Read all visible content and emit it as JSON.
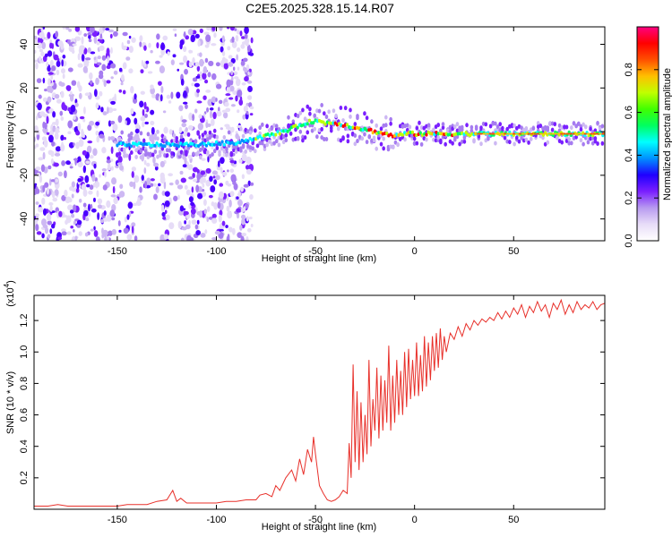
{
  "title": "C2E5.2025.328.15.14.R07",
  "chart_data": [
    {
      "type": "heatmap",
      "title": "C2E5.2025.328.15.14.R07",
      "xlabel": "Height of straight line (km)",
      "ylabel": "Frequency (Hz)",
      "xlim": [
        -192,
        96
      ],
      "ylim": [
        -50,
        48
      ],
      "xticks": [
        -150,
        -100,
        -50,
        0,
        50
      ],
      "yticks": [
        -40,
        -20,
        0,
        20,
        40
      ],
      "colorbar": {
        "label": "Normalized spectral amplitude",
        "range": [
          0.0,
          1.0
        ],
        "ticks": [
          0.0,
          0.2,
          0.4,
          0.6,
          0.8
        ],
        "colors": [
          "#ffffff",
          "#e8ddf8",
          "#b89af0",
          "#7a1fff",
          "#1f00ff",
          "#0090ff",
          "#00ffff",
          "#00ff60",
          "#40ff00",
          "#c0ff00",
          "#ffc000",
          "#ff5000",
          "#ff0000",
          "#ff0080"
        ]
      },
      "ridge": {
        "x": [
          -190,
          -170,
          -150,
          -130,
          -110,
          -90,
          -80,
          -70,
          -60,
          -55,
          -50,
          -45,
          -40,
          -35,
          -30,
          -25,
          -20,
          -15,
          -10,
          -5,
          0,
          10,
          20,
          30,
          40,
          50,
          60,
          70,
          80,
          96
        ],
        "y": [
          -6,
          -6,
          -6,
          -6,
          -6,
          -5,
          -3,
          -1,
          2,
          4,
          5,
          4,
          4,
          3,
          2,
          1,
          0,
          -1,
          -2,
          -1,
          -1,
          -1,
          -1,
          -1,
          -1,
          -1,
          -1,
          -1,
          -1,
          -1
        ]
      }
    },
    {
      "type": "line",
      "title": "",
      "xlabel": "Height of straight line (km)",
      "ylabel": "SNR (10 * v/v)",
      "yscale_label": "(x10",
      "yscale_exp": "4",
      "yscale_close": ")",
      "xlim": [
        -192,
        96
      ],
      "ylim": [
        0,
        1.36
      ],
      "xticks": [
        -150,
        -100,
        -50,
        0,
        50
      ],
      "yticks": [
        0.2,
        0.4,
        0.6,
        0.8,
        1.0,
        1.2
      ],
      "color": "#e8302a",
      "series": [
        {
          "name": "SNR",
          "x": [
            -192,
            -185,
            -180,
            -175,
            -170,
            -165,
            -160,
            -155,
            -150,
            -145,
            -140,
            -135,
            -130,
            -125,
            -122,
            -120,
            -118,
            -115,
            -110,
            -105,
            -100,
            -95,
            -90,
            -85,
            -80,
            -78,
            -75,
            -72,
            -70,
            -68,
            -65,
            -62,
            -60,
            -58,
            -56,
            -54,
            -52,
            -51,
            -50,
            -49,
            -48,
            -46,
            -44,
            -42,
            -40,
            -38,
            -36,
            -34,
            -33,
            -32,
            -31,
            -30,
            -29,
            -28,
            -27,
            -26,
            -25,
            -24,
            -23,
            -22,
            -21,
            -20,
            -19,
            -18,
            -17,
            -16,
            -15,
            -14,
            -13,
            -12,
            -11,
            -10,
            -9,
            -8,
            -7,
            -6,
            -5,
            -4,
            -3,
            -2,
            -1,
            0,
            1,
            2,
            3,
            4,
            5,
            6,
            7,
            8,
            9,
            10,
            11,
            12,
            13,
            14,
            15,
            16,
            18,
            20,
            22,
            24,
            26,
            28,
            30,
            32,
            34,
            36,
            38,
            40,
            42,
            44,
            46,
            48,
            50,
            52,
            54,
            56,
            58,
            60,
            62,
            64,
            66,
            68,
            70,
            72,
            74,
            76,
            78,
            80,
            82,
            84,
            86,
            88,
            90,
            92,
            94,
            96
          ],
          "values": [
            0.02,
            0.02,
            0.03,
            0.02,
            0.02,
            0.02,
            0.02,
            0.02,
            0.02,
            0.03,
            0.03,
            0.03,
            0.05,
            0.06,
            0.12,
            0.05,
            0.07,
            0.04,
            0.04,
            0.04,
            0.04,
            0.05,
            0.05,
            0.06,
            0.06,
            0.09,
            0.1,
            0.08,
            0.15,
            0.12,
            0.2,
            0.25,
            0.18,
            0.32,
            0.22,
            0.38,
            0.3,
            0.46,
            0.35,
            0.25,
            0.15,
            0.1,
            0.06,
            0.05,
            0.06,
            0.08,
            0.12,
            0.1,
            0.42,
            0.2,
            0.92,
            0.3,
            0.75,
            0.25,
            0.68,
            0.3,
            0.6,
            0.35,
            0.95,
            0.4,
            0.7,
            0.5,
            0.9,
            0.45,
            0.85,
            0.5,
            0.82,
            0.55,
            1.04,
            0.5,
            0.85,
            0.55,
            0.95,
            0.6,
            0.88,
            0.6,
            1.0,
            0.65,
            1.02,
            0.7,
            0.95,
            0.72,
            1.06,
            0.72,
            0.98,
            0.75,
            1.1,
            0.78,
            1.06,
            0.82,
            1.1,
            0.88,
            1.12,
            0.9,
            1.15,
            0.95,
            1.1,
            1.0,
            1.12,
            1.08,
            1.16,
            1.1,
            1.18,
            1.14,
            1.2,
            1.17,
            1.21,
            1.19,
            1.22,
            1.2,
            1.25,
            1.21,
            1.26,
            1.22,
            1.28,
            1.24,
            1.3,
            1.22,
            1.29,
            1.25,
            1.32,
            1.26,
            1.3,
            1.22,
            1.31,
            1.27,
            1.33,
            1.24,
            1.3,
            1.25,
            1.32,
            1.27,
            1.3,
            1.28,
            1.32,
            1.27,
            1.3,
            1.31
          ]
        }
      ]
    }
  ]
}
